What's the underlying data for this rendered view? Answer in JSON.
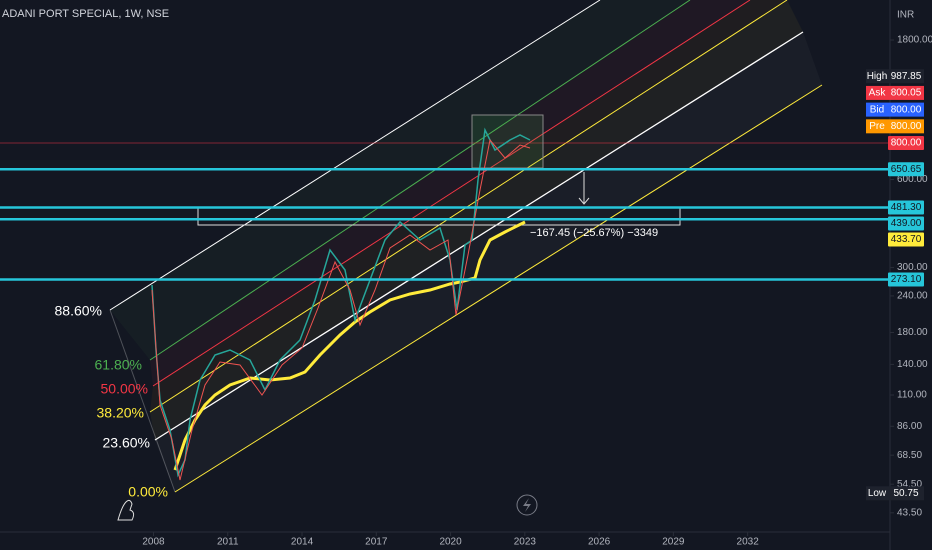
{
  "header": {
    "title": "ADANI PORT SPECIAL, 1W, NSE"
  },
  "y_axis": {
    "unit": "INR",
    "scale": "log",
    "ylim": [
      38,
      2467
    ],
    "ticks": [
      {
        "value": 1800,
        "label": "1800.00"
      },
      {
        "value": 600,
        "label": "600.00"
      },
      {
        "value": 300,
        "label": "300.00"
      },
      {
        "value": 240,
        "label": "240.00"
      },
      {
        "value": 180,
        "label": "180.00"
      },
      {
        "value": 140,
        "label": "140.00"
      },
      {
        "value": 110,
        "label": "110.00"
      },
      {
        "value": 86,
        "label": "86.00"
      },
      {
        "value": 68.5,
        "label": "68.50"
      },
      {
        "value": 54.5,
        "label": "54.50"
      },
      {
        "value": 43.5,
        "label": "43.50"
      }
    ]
  },
  "x_axis": {
    "xlim": [
      2001.8,
      2037.75
    ],
    "ticks": [
      2008,
      2011,
      2014,
      2017,
      2020,
      2023,
      2026,
      2029,
      2032
    ]
  },
  "quote": [
    {
      "label": "High",
      "value": "987.85"
    },
    {
      "label": "Ask",
      "value": "800.05",
      "color": "#f23645"
    },
    {
      "label": "Bid",
      "value": "800.00",
      "color": "#2962ff"
    },
    {
      "label": "Pre",
      "value": "800.00",
      "color": "#ff9800"
    }
  ],
  "last_price": {
    "value": 800,
    "label": "800.00",
    "color": "#f23645"
  },
  "price_levels": [
    {
      "value": 650.65,
      "label": "650.65",
      "color": "#26c6da"
    },
    {
      "value": 481.3,
      "label": "481.30",
      "color": "#26c6da"
    },
    {
      "value": 439,
      "label": "439.00",
      "color": "#26c6da"
    },
    {
      "value": 433.7,
      "label": "433.70",
      "color": "#ffeb3b",
      "line": false
    },
    {
      "value": 273.1,
      "label": "273.10",
      "color": "#26c6da"
    }
  ],
  "low": {
    "label": "Low",
    "value": 50.75,
    "value_label": "50.75"
  },
  "fib_levels": [
    {
      "label": "88.60%",
      "color": "#ffffff"
    },
    {
      "label": "61.80%",
      "color": "#4caf50"
    },
    {
      "label": "50.00%",
      "color": "#f23645"
    },
    {
      "label": "38.20%",
      "color": "#ffeb3b"
    },
    {
      "label": "23.60%",
      "color": "#ffffff"
    },
    {
      "label": "0.00%",
      "color": "#ffeb3b"
    }
  ],
  "measure": {
    "label": "−167.45 (−25.67%) −3349"
  }
}
